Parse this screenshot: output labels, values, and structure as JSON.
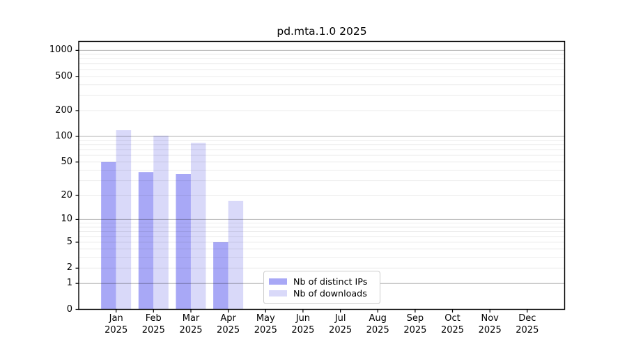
{
  "chart_data": {
    "type": "bar",
    "title": "pd.mta.1.0 2025",
    "categories": [
      "Jan",
      "Feb",
      "Mar",
      "Apr",
      "May",
      "Jun",
      "Jul",
      "Aug",
      "Sep",
      "Oct",
      "Nov",
      "Dec"
    ],
    "category_year_label": "2025",
    "series": [
      {
        "name": "Nb of distinct IPs",
        "color": "#a8a8f6",
        "values": [
          50,
          38,
          36,
          5,
          null,
          null,
          null,
          null,
          null,
          null,
          null,
          null
        ]
      },
      {
        "name": "Nb of downloads",
        "color": "#d9d9f9",
        "values": [
          118,
          102,
          84,
          17,
          null,
          null,
          null,
          null,
          null,
          null,
          null,
          null
        ]
      }
    ],
    "y_ticks": [
      0,
      1,
      2,
      5,
      10,
      20,
      50,
      100,
      200,
      500,
      1000
    ],
    "y_scale": "log1p (position proportional to log10(1+y))",
    "ylim": [
      0,
      1259
    ],
    "xlabel": "",
    "ylabel": "",
    "grid": "horizontal; stronger lines at 1, 10, 100, 1000; faint minor lines at 2-9 of each decade",
    "legend_position": "inside, lower middle"
  },
  "colors": {
    "axis": "#000000",
    "grid_major": "rgba(0,0,0,0.30)",
    "grid_minor": "rgba(0,0,0,0.075)",
    "background": "#ffffff"
  }
}
